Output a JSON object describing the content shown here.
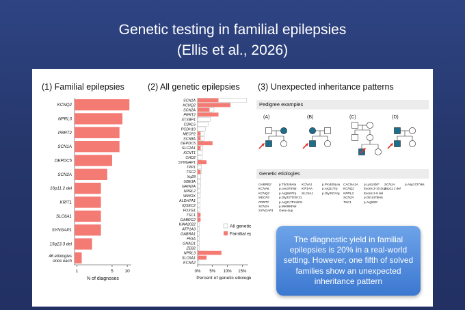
{
  "slide": {
    "title_line1": "Genetic testing in familial epilepsies",
    "title_line2": "(Ellis et al., 2026)",
    "callout": "The diagnostic yield in familial epilepsies is 20% in a real-world setting. However, one fifth of solved families show an unexpected inheritance pattern"
  },
  "colors": {
    "bar": "#f47a74",
    "all_bar_border": "#b5b5b5",
    "affected": "#1d6e8c",
    "callout": "#4a87dc"
  },
  "panel1": {
    "title": "(1) Familial epilepsies"
  },
  "panel2": {
    "title": "(2) All genetic epilepsies"
  },
  "panel3": {
    "title": "(3) Unexpected inheritance patterns",
    "pedigree_header": "Pedigree examples",
    "pedigree_labels": [
      "(A)",
      "(B)",
      "(C)",
      "(D)"
    ],
    "etiologies_header": "Genetic etiologies",
    "etiologies": [
      [
        [
          "GABRB2",
          "p.Thr249Ala"
        ],
        [
          "KCNA6",
          "p.Leu376Val"
        ],
        [
          "KCNQ2",
          "p.Arg560Trp"
        ],
        [
          "MECP2",
          "p.Gly237Tcfs*21"
        ],
        [
          "PRRT2",
          "p.Arg217Profs*8"
        ],
        [
          "SCN2A",
          "p.Met958Val"
        ],
        [
          "SYNGAP1",
          "Gene dup."
        ]
      ],
      [
        [
          "KCNA1",
          "p.Pro405Leu"
        ],
        [
          "KIF1AA",
          "p.Arg11Trp"
        ],
        [
          "SLC6A1",
          "p.Gly297Arg"
        ]
      ],
      [
        [
          "CACNA1A",
          "p.Lys1400*"
        ],
        [
          "KCNQ2",
          "Exons 2-10 dup"
        ],
        [
          "NPRL3",
          "Exons 2-9 del"
        ],
        [
          "SCN2A",
          "p.Gln1478His"
        ],
        [
          "TSC1",
          "p.Arg509*"
        ]
      ],
      [
        [
          "SCN1A",
          "p.Asp1727His"
        ],
        [
          "16p11.2 del",
          ""
        ]
      ]
    ]
  },
  "chart_data": [
    {
      "type": "bar",
      "orientation": "horizontal",
      "title": "(1) Familial epilepsies",
      "xlabel": "N of diagnoses",
      "xscale": "log",
      "xticks": [
        1,
        5,
        10
      ],
      "categories": [
        "KCNQ2",
        "NPRL3",
        "PRRT2",
        "SCN1A",
        "DEPDC5",
        "SCN2A",
        "16p11.2 del",
        "KRIT1",
        "SLC6A1",
        "SYNGAP1",
        "15q13.3 del",
        "46 etiologies once each"
      ],
      "values": [
        11,
        8,
        7,
        7,
        5,
        4,
        3,
        3,
        3,
        3,
        2,
        1.25
      ]
    },
    {
      "type": "bar",
      "orientation": "horizontal",
      "title": "(2) All genetic epilepsies",
      "xlabel": "Percent of genetic etiologies",
      "xticks": [
        "0%",
        "5%",
        "10%",
        "15%"
      ],
      "xlim": [
        0,
        17
      ],
      "legend": [
        "All genetic epilepsies",
        "Familial epilepsies"
      ],
      "legend_position": "bottom-right",
      "categories": [
        "SCN1A",
        "KCNQ2",
        "SCN2A",
        "PRRT2",
        "STXBP1",
        "CDKL5",
        "PCDH19",
        "MECP2",
        "SCN8A",
        "DEPDC5",
        "SLC2A1",
        "KCNT1",
        "CHD2",
        "SYNGAP1",
        "TPP1",
        "TSC2",
        "Xq28",
        "UBE3A",
        "GRIN2A",
        "NPRL2",
        "WWOX",
        "ALDH7A1",
        "IQSEC2",
        "FOXG1",
        "TSC1",
        "GABRG2",
        "KIAA2022",
        "ATP1A3",
        "GABRA1",
        "PIGA",
        "GNAO1",
        "ZEB2",
        "NPRL3",
        "SLC6A1",
        "KCNA2"
      ],
      "series": [
        {
          "name": "All genetic epilepsies",
          "values": [
            16.5,
            11,
            5.5,
            4.8,
            4.2,
            3.5,
            2.6,
            2.3,
            2.2,
            2,
            1.8,
            1.6,
            1.5,
            1.4,
            1.3,
            1.2,
            1.1,
            1.05,
            1,
            0.95,
            0.9,
            0.85,
            0.8,
            0.75,
            0.7,
            0.68,
            0.65,
            0.62,
            0.6,
            0.58,
            0.55,
            0.52,
            0.5,
            0.48,
            0.45
          ]
        },
        {
          "name": "Familial epilepsies",
          "values": [
            7,
            11,
            4,
            7,
            0,
            0,
            0,
            1,
            1,
            5,
            1,
            0,
            0,
            3,
            0,
            1,
            0,
            0,
            0,
            0,
            0,
            0,
            0,
            0,
            1,
            1,
            0,
            0,
            0,
            0,
            0,
            0,
            8,
            3,
            0
          ]
        }
      ]
    }
  ]
}
